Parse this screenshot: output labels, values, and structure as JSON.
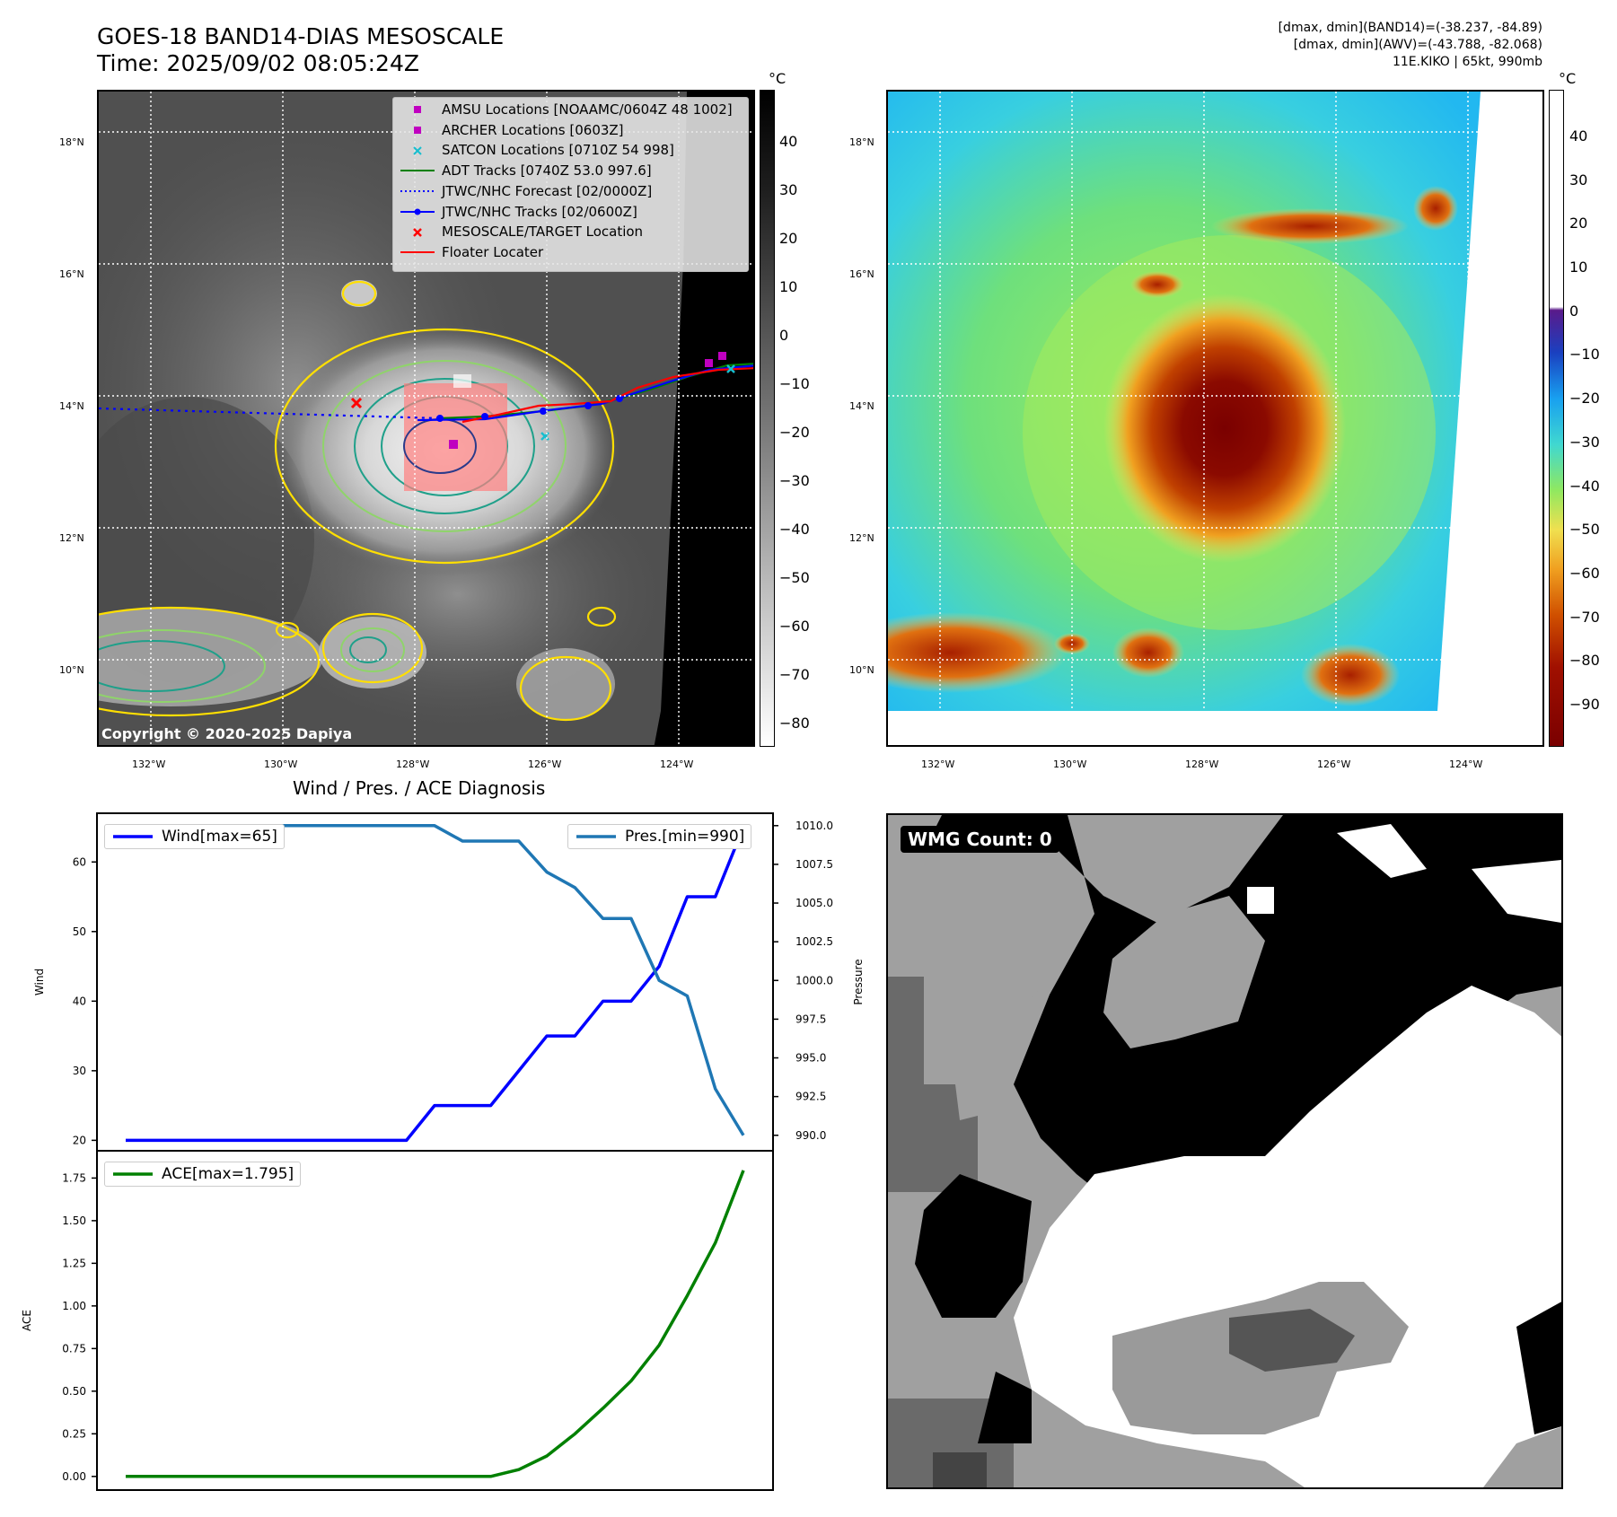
{
  "header": {
    "title_line1": "GOES-18 BAND14-DIAS MESOSCALE",
    "title_line2": "Time: 2025/09/02 08:05:24Z",
    "info_line1": "[dmax, dmin](BAND14)=(-38.237, -84.89)",
    "info_line2": "[dmax, dmin](AWV)=(-43.788, -82.068)",
    "info_line3": "11E.KIKO | 65kt, 990mb"
  },
  "map_axes": {
    "lat_labels": [
      "18°N",
      "16°N",
      "14°N",
      "12°N",
      "10°N"
    ],
    "lon_labels": [
      "132°W",
      "130°W",
      "128°W",
      "126°W",
      "124°W"
    ]
  },
  "gray_colorbar": {
    "unit": "°C",
    "ticks": [
      "40",
      "30",
      "20",
      "10",
      "0",
      "−10",
      "−20",
      "−30",
      "−40",
      "−50",
      "−60",
      "−70",
      "−80"
    ]
  },
  "color_colorbar": {
    "unit": "°C",
    "ticks": [
      "40",
      "30",
      "20",
      "10",
      "0",
      "−10",
      "−20",
      "−30",
      "−40",
      "−50",
      "−60",
      "−70",
      "−80",
      "−90"
    ]
  },
  "map_legend": {
    "items": [
      {
        "label": "AMSU Locations [NOAAMC/0604Z 48 1002]",
        "symbol": "square",
        "color": "#c000c0"
      },
      {
        "label": "ARCHER Locations [0603Z]",
        "symbol": "square",
        "color": "#c000c0"
      },
      {
        "label": "SATCON Locations [0710Z 54 998]",
        "symbol": "x",
        "color": "#17becf"
      },
      {
        "label": "ADT Tracks [0740Z 53.0 997.6]",
        "symbol": "line",
        "color": "#008000"
      },
      {
        "label": "JTWC/NHC Forecast [02/0000Z]",
        "symbol": "dotted",
        "color": "#0000ff"
      },
      {
        "label": "JTWC/NHC Tracks [02/0600Z]",
        "symbol": "line-dot",
        "color": "#0000ff"
      },
      {
        "label": "MESOSCALE/TARGET Location",
        "symbol": "x",
        "color": "#ff0000"
      },
      {
        "label": "Floater Locater",
        "symbol": "line",
        "color": "#ff0000"
      }
    ]
  },
  "copyright": "Copyright © 2020-2025 Dapiya",
  "wmg_panel": {
    "label": "WMG Count: 0"
  },
  "chart_data": [
    {
      "type": "line",
      "title": "Wind / Pres. / ACE Diagnosis",
      "x": [
        0,
        1,
        2,
        3,
        4,
        5,
        6,
        7,
        8,
        9,
        10,
        11,
        12,
        13,
        14,
        15,
        16,
        17,
        18,
        19,
        20,
        21,
        22
      ],
      "series": [
        {
          "name": "Wind",
          "legend": "Wind[max=65]",
          "axis": "left",
          "color": "#0000ff",
          "values": [
            20,
            20,
            20,
            20,
            20,
            20,
            20,
            20,
            20,
            20,
            20,
            25,
            25,
            25,
            30,
            35,
            35,
            40,
            40,
            45,
            55,
            55,
            65
          ]
        },
        {
          "name": "Pres.",
          "legend": "Pres.[min=990]",
          "axis": "right",
          "color": "#1f77b4",
          "values": [
            1010,
            1010,
            1010,
            1010,
            1010,
            1010,
            1010,
            1010,
            1010,
            1010,
            1010,
            1010,
            1009,
            1009,
            1009,
            1007,
            1006,
            1004,
            1004,
            1000,
            999,
            993,
            990
          ]
        }
      ],
      "ylabel": "Wind",
      "y2label": "Pressure",
      "ylim": [
        18.5,
        67
      ],
      "y2lim": [
        989,
        1010.8
      ],
      "yticks": [
        "60",
        "50",
        "40",
        "30",
        "20"
      ],
      "y2ticks": [
        "1010.0",
        "1007.5",
        "1005.0",
        "1002.5",
        "1000.0",
        "997.5",
        "995.0",
        "992.5",
        "990.0"
      ]
    },
    {
      "type": "line",
      "title": "",
      "x": [
        0,
        1,
        2,
        3,
        4,
        5,
        6,
        7,
        8,
        9,
        10,
        11,
        12,
        13,
        14,
        15,
        16,
        17,
        18,
        19,
        20,
        21,
        22
      ],
      "series": [
        {
          "name": "ACE",
          "legend": "ACE[max=1.795]",
          "color": "#008000",
          "values": [
            0,
            0,
            0,
            0,
            0,
            0,
            0,
            0,
            0,
            0,
            0,
            0,
            0,
            0,
            0.04,
            0.12,
            0.25,
            0.4,
            0.56,
            0.77,
            1.06,
            1.37,
            1.795
          ]
        }
      ],
      "ylabel": "ACE",
      "ylim": [
        -0.08,
        1.91
      ],
      "yticks": [
        "1.75",
        "1.50",
        "1.25",
        "1.00",
        "0.75",
        "0.50",
        "0.25",
        "0.00"
      ]
    }
  ]
}
